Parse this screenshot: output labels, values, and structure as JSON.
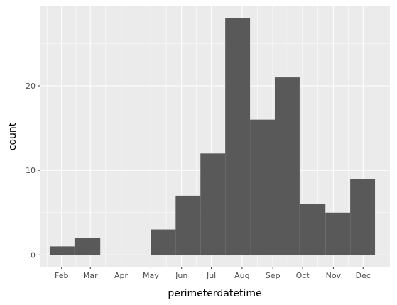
{
  "chart_data": {
    "type": "bar",
    "xlabel": "perimeterdatetime",
    "ylabel": "count",
    "x_tick_labels": [
      "Feb",
      "Mar",
      "Apr",
      "May",
      "Jun",
      "Jul",
      "Aug",
      "Sep",
      "Oct",
      "Nov",
      "Dec"
    ],
    "y_ticks": [
      0,
      10,
      20
    ],
    "ylim": [
      0,
      29
    ],
    "bins": [
      {
        "start": "2020-01-20",
        "end": "2020-02-14",
        "count": 1
      },
      {
        "start": "2020-02-14",
        "end": "2020-03-11",
        "count": 2
      },
      {
        "start": "2020-03-11",
        "end": "2020-04-05",
        "count": 0
      },
      {
        "start": "2020-04-05",
        "end": "2020-05-01",
        "count": 0
      },
      {
        "start": "2020-05-01",
        "end": "2020-05-26",
        "count": 3
      },
      {
        "start": "2020-05-26",
        "end": "2020-06-20",
        "count": 7
      },
      {
        "start": "2020-06-20",
        "end": "2020-07-15",
        "count": 12
      },
      {
        "start": "2020-07-15",
        "end": "2020-08-09",
        "count": 28
      },
      {
        "start": "2020-08-09",
        "end": "2020-09-03",
        "count": 16
      },
      {
        "start": "2020-09-03",
        "end": "2020-09-28",
        "count": 21
      },
      {
        "start": "2020-09-28",
        "end": "2020-10-24",
        "count": 6
      },
      {
        "start": "2020-10-24",
        "end": "2020-11-18",
        "count": 5
      },
      {
        "start": "2020-11-18",
        "end": "2020-12-13",
        "count": 9
      }
    ],
    "grid": true,
    "legend": "none",
    "colors": {
      "panel_background": "#ebebeb",
      "grid_major": "#ffffff",
      "bar_fill": "#595959",
      "tick_label": "#4d4d4d",
      "axis_title": "#000000"
    }
  }
}
